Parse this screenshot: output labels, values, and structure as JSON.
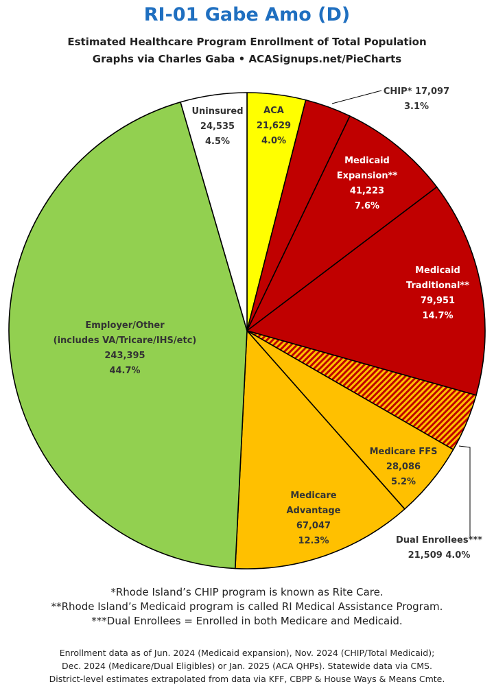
{
  "title": "RI-01 Gabe Amo (D)",
  "subtitle": "Estimated Healthcare Program Enrollment of Total Population",
  "credit": "Graphs via Charles Gaba  •  ACASignups.net/PieCharts",
  "chart_data": {
    "type": "pie",
    "slices": [
      {
        "name": "ACA",
        "value": 21629,
        "percent": "4.0%",
        "color": "#ffff00",
        "label_lines": [
          "ACA",
          "21,629",
          "4.0%"
        ],
        "label_color": "#333333"
      },
      {
        "name": "CHIP*",
        "value": 17097,
        "percent": "3.1%",
        "color": "#c00000",
        "label_lines": [
          "CHIP* 17,097",
          "3.1%"
        ],
        "label_color": "#333333"
      },
      {
        "name": "Medicaid Expansion**",
        "value": 41223,
        "percent": "7.6%",
        "color": "#c00000",
        "label_lines": [
          "Medicaid",
          "Expansion**",
          "41,223",
          "7.6%"
        ],
        "label_color": "#ffffff"
      },
      {
        "name": "Medicaid Traditional**",
        "value": 79951,
        "percent": "14.7%",
        "color": "#c00000",
        "label_lines": [
          "Medicaid",
          "Traditional**",
          "79,951",
          "14.7%"
        ],
        "label_color": "#ffffff"
      },
      {
        "name": "Dual Enrollees***",
        "value": 21509,
        "percent": "4.0%",
        "color": "hatched",
        "label_lines": [
          "Dual Enrollees***",
          "21,509 4.0%"
        ],
        "label_color": "#333333"
      },
      {
        "name": "Medicare FFS",
        "value": 28086,
        "percent": "5.2%",
        "color": "#ffc000",
        "label_lines": [
          "Medicare FFS",
          "28,086",
          "5.2%"
        ],
        "label_color": "#333333"
      },
      {
        "name": "Medicare Advantage",
        "value": 67047,
        "percent": "12.3%",
        "color": "#ffc000",
        "label_lines": [
          "Medicare",
          "Advantage",
          "67,047",
          "12.3%"
        ],
        "label_color": "#333333"
      },
      {
        "name": "Employer/Other (includes VA/Tricare/IHS/etc)",
        "value": 243395,
        "percent": "44.7%",
        "color": "#92d050",
        "label_lines": [
          "Employer/Other",
          "(includes VA/Tricare/IHS/etc)",
          "243,395",
          "44.7%"
        ],
        "label_color": "#333333"
      },
      {
        "name": "Uninsured",
        "value": 24535,
        "percent": "4.5%",
        "color": "#ffffff",
        "label_lines": [
          "Uninsured",
          "24,535",
          "4.5%"
        ],
        "label_color": "#333333"
      }
    ],
    "start_angle": "12 o'clock",
    "direction": "clockwise"
  },
  "notes": [
    "*Rhode Island’s CHIP program is known as Rite Care.",
    "**Rhode Island’s Medicaid program is called RI Medical Assistance Program.",
    "***Dual Enrollees = Enrolled in both Medicare and Medicaid."
  ],
  "sources": [
    "Enrollment data as of Jun. 2024 (Medicaid expansion), Nov. 2024 (CHIP/Total Medicaid);",
    "Dec. 2024 (Medicare/Dual Eligibles) or Jan. 2025 (ACA QHPs). Statewide data via CMS.",
    "District-level estimates extrapolated from data via KFF, CBPP & House Ways & Means Cmte."
  ]
}
